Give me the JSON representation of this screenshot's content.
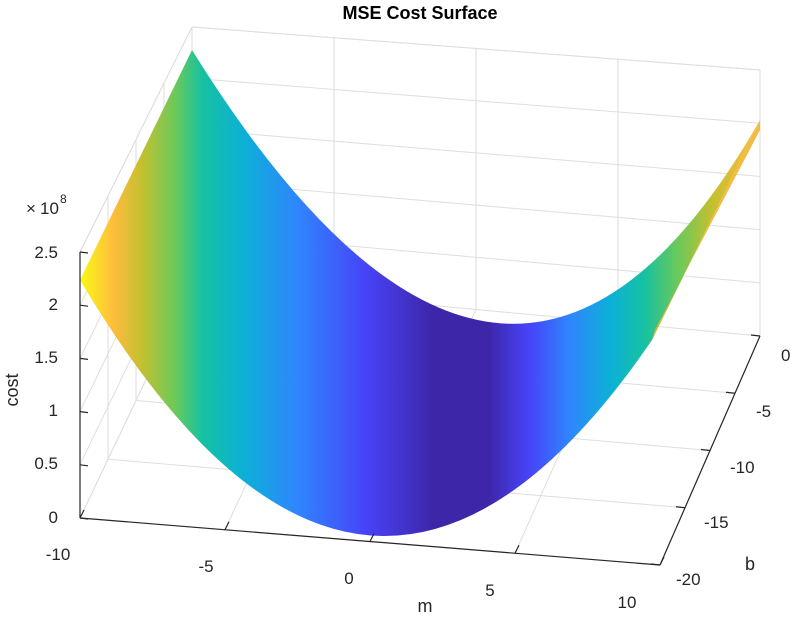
{
  "chart_data": {
    "type": "surface",
    "title": "MSE Cost Surface",
    "xlabel": "m",
    "ylabel": "b",
    "zlabel": "cost",
    "z_exponent_label": "10",
    "z_exponent_power": "8",
    "x_ticks": [
      "-10",
      "-5",
      "0",
      "5",
      "10"
    ],
    "y_ticks": [
      "0",
      "-5",
      "-10",
      "-15",
      "-20"
    ],
    "z_ticks": [
      "0",
      "0.5",
      "1",
      "1.5",
      "2",
      "2.5"
    ],
    "xlim": [
      -10,
      10
    ],
    "ylim": [
      -20,
      0
    ],
    "zlim": [
      0,
      2.5
    ],
    "grid": true,
    "colormap": "parula",
    "colormap_colors": [
      "#3e26a8",
      "#4743f8",
      "#2f86ff",
      "#0cb0d6",
      "#16c1a1",
      "#6cc95a",
      "#c4c02f",
      "#fdbc3c",
      "#f9fb15"
    ],
    "surface_edge_values": {
      "m": [
        -10,
        10
      ],
      "b": [
        0,
        -20
      ],
      "cost_at_m_-10": [
        2.25,
        3.55
      ],
      "cost_at_m_10": [
        1.25,
        1.27
      ]
    }
  }
}
